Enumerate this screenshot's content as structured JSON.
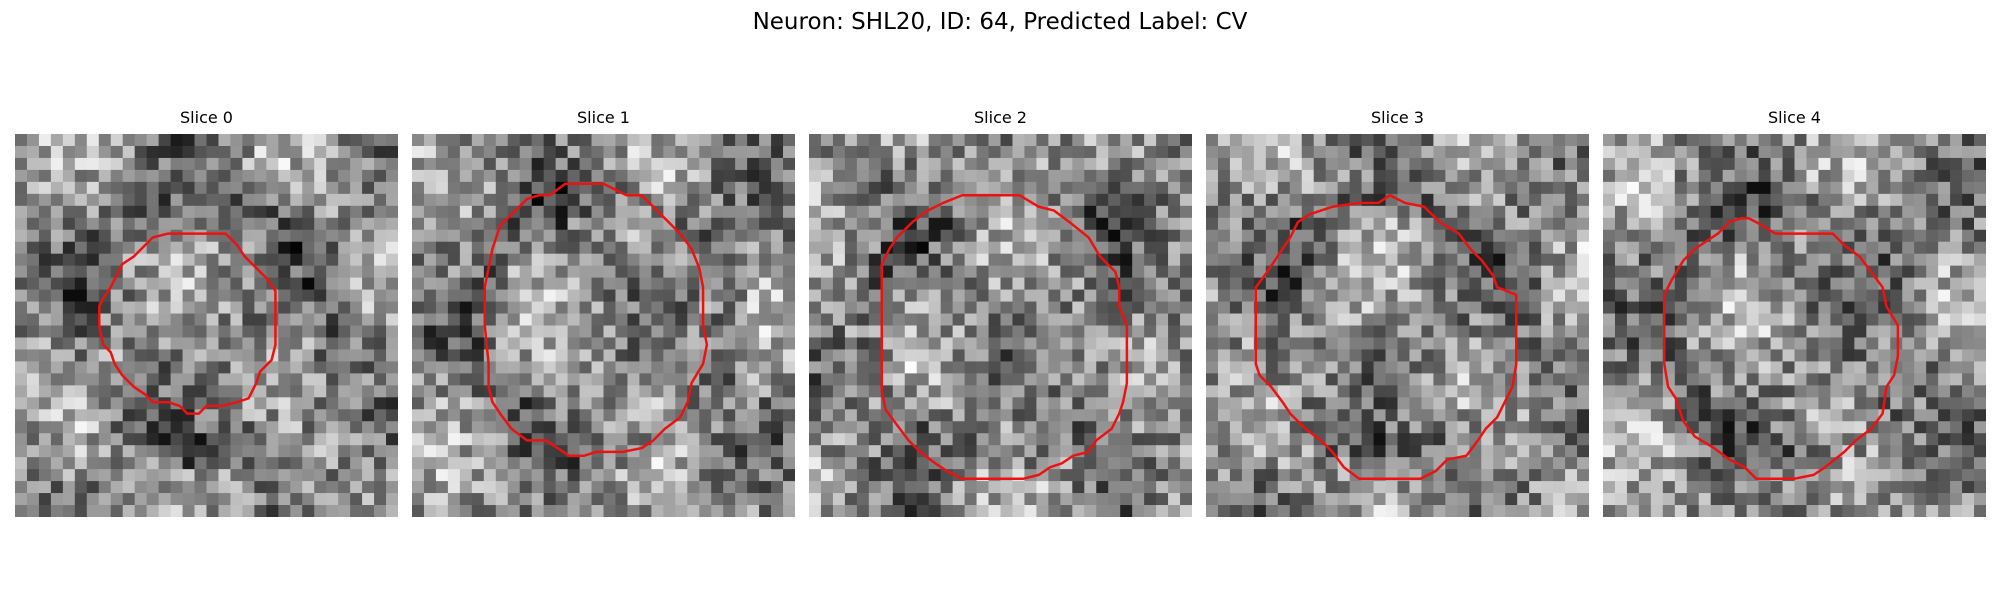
{
  "figure": {
    "title": "Neuron: SHL20, ID: 64, Predicted Label: CV",
    "contour_color": "#ee1111",
    "colormap": "gray"
  },
  "panels": [
    {
      "title": "Slice 0",
      "img_seed": 101,
      "contour": [
        [
          0.5,
          0.26
        ],
        [
          0.51,
          0.26
        ],
        [
          0.55,
          0.26
        ],
        [
          0.58,
          0.29
        ],
        [
          0.6,
          0.32
        ],
        [
          0.63,
          0.35
        ],
        [
          0.66,
          0.38
        ],
        [
          0.68,
          0.41
        ],
        [
          0.68,
          0.45
        ],
        [
          0.68,
          0.5
        ],
        [
          0.68,
          0.55
        ],
        [
          0.67,
          0.59
        ],
        [
          0.64,
          0.62
        ],
        [
          0.63,
          0.65
        ],
        [
          0.61,
          0.69
        ],
        [
          0.58,
          0.7
        ],
        [
          0.54,
          0.71
        ],
        [
          0.5,
          0.71
        ],
        [
          0.48,
          0.73
        ],
        [
          0.45,
          0.73
        ],
        [
          0.43,
          0.71
        ],
        [
          0.4,
          0.7
        ],
        [
          0.36,
          0.7
        ],
        [
          0.34,
          0.68
        ],
        [
          0.31,
          0.66
        ],
        [
          0.28,
          0.63
        ],
        [
          0.26,
          0.6
        ],
        [
          0.25,
          0.57
        ],
        [
          0.23,
          0.55
        ],
        [
          0.22,
          0.5
        ],
        [
          0.22,
          0.45
        ],
        [
          0.23,
          0.43
        ],
        [
          0.25,
          0.4
        ],
        [
          0.26,
          0.38
        ],
        [
          0.28,
          0.34
        ],
        [
          0.31,
          0.32
        ],
        [
          0.33,
          0.3
        ],
        [
          0.36,
          0.27
        ],
        [
          0.4,
          0.26
        ],
        [
          0.45,
          0.26
        ]
      ]
    },
    {
      "title": "Slice 1",
      "img_seed": 202,
      "contour": [
        [
          0.4,
          0.13
        ],
        [
          0.45,
          0.13
        ],
        [
          0.5,
          0.13
        ],
        [
          0.56,
          0.16
        ],
        [
          0.6,
          0.16
        ],
        [
          0.64,
          0.2
        ],
        [
          0.67,
          0.23
        ],
        [
          0.7,
          0.26
        ],
        [
          0.73,
          0.3
        ],
        [
          0.75,
          0.35
        ],
        [
          0.76,
          0.4
        ],
        [
          0.76,
          0.5
        ],
        [
          0.77,
          0.55
        ],
        [
          0.76,
          0.6
        ],
        [
          0.73,
          0.65
        ],
        [
          0.72,
          0.7
        ],
        [
          0.7,
          0.74
        ],
        [
          0.66,
          0.77
        ],
        [
          0.63,
          0.8
        ],
        [
          0.6,
          0.82
        ],
        [
          0.55,
          0.83
        ],
        [
          0.52,
          0.83
        ],
        [
          0.48,
          0.83
        ],
        [
          0.45,
          0.84
        ],
        [
          0.41,
          0.84
        ],
        [
          0.38,
          0.82
        ],
        [
          0.35,
          0.8
        ],
        [
          0.3,
          0.8
        ],
        [
          0.26,
          0.77
        ],
        [
          0.23,
          0.73
        ],
        [
          0.21,
          0.7
        ],
        [
          0.2,
          0.66
        ],
        [
          0.2,
          0.6
        ],
        [
          0.19,
          0.5
        ],
        [
          0.19,
          0.4
        ],
        [
          0.2,
          0.35
        ],
        [
          0.21,
          0.3
        ],
        [
          0.23,
          0.24
        ],
        [
          0.26,
          0.21
        ],
        [
          0.3,
          0.17
        ],
        [
          0.33,
          0.16
        ],
        [
          0.36,
          0.16
        ]
      ]
    },
    {
      "title": "Slice 2",
      "img_seed": 303,
      "contour": [
        [
          0.4,
          0.16
        ],
        [
          0.45,
          0.16
        ],
        [
          0.55,
          0.16
        ],
        [
          0.6,
          0.19
        ],
        [
          0.64,
          0.2
        ],
        [
          0.68,
          0.23
        ],
        [
          0.73,
          0.27
        ],
        [
          0.76,
          0.32
        ],
        [
          0.8,
          0.36
        ],
        [
          0.81,
          0.4
        ],
        [
          0.81,
          0.45
        ],
        [
          0.83,
          0.5
        ],
        [
          0.83,
          0.6
        ],
        [
          0.83,
          0.65
        ],
        [
          0.82,
          0.7
        ],
        [
          0.81,
          0.73
        ],
        [
          0.79,
          0.77
        ],
        [
          0.75,
          0.8
        ],
        [
          0.73,
          0.83
        ],
        [
          0.69,
          0.84
        ],
        [
          0.66,
          0.86
        ],
        [
          0.63,
          0.87
        ],
        [
          0.6,
          0.89
        ],
        [
          0.56,
          0.9
        ],
        [
          0.5,
          0.9
        ],
        [
          0.45,
          0.9
        ],
        [
          0.4,
          0.9
        ],
        [
          0.36,
          0.88
        ],
        [
          0.33,
          0.86
        ],
        [
          0.29,
          0.83
        ],
        [
          0.26,
          0.8
        ],
        [
          0.23,
          0.76
        ],
        [
          0.2,
          0.72
        ],
        [
          0.19,
          0.67
        ],
        [
          0.19,
          0.6
        ],
        [
          0.19,
          0.5
        ],
        [
          0.19,
          0.4
        ],
        [
          0.19,
          0.34
        ],
        [
          0.21,
          0.3
        ],
        [
          0.23,
          0.27
        ],
        [
          0.27,
          0.23
        ],
        [
          0.31,
          0.2
        ],
        [
          0.35,
          0.18
        ]
      ]
    },
    {
      "title": "Slice 3",
      "img_seed": 404,
      "contour": [
        [
          0.4,
          0.18
        ],
        [
          0.45,
          0.18
        ],
        [
          0.48,
          0.16
        ],
        [
          0.52,
          0.18
        ],
        [
          0.57,
          0.19
        ],
        [
          0.61,
          0.23
        ],
        [
          0.66,
          0.26
        ],
        [
          0.69,
          0.3
        ],
        [
          0.72,
          0.33
        ],
        [
          0.75,
          0.37
        ],
        [
          0.76,
          0.4
        ],
        [
          0.81,
          0.42
        ],
        [
          0.81,
          0.5
        ],
        [
          0.81,
          0.6
        ],
        [
          0.8,
          0.66
        ],
        [
          0.78,
          0.7
        ],
        [
          0.76,
          0.74
        ],
        [
          0.73,
          0.77
        ],
        [
          0.71,
          0.8
        ],
        [
          0.68,
          0.84
        ],
        [
          0.63,
          0.85
        ],
        [
          0.6,
          0.88
        ],
        [
          0.56,
          0.9
        ],
        [
          0.5,
          0.9
        ],
        [
          0.4,
          0.9
        ],
        [
          0.36,
          0.87
        ],
        [
          0.33,
          0.83
        ],
        [
          0.3,
          0.8
        ],
        [
          0.26,
          0.77
        ],
        [
          0.22,
          0.73
        ],
        [
          0.2,
          0.7
        ],
        [
          0.17,
          0.66
        ],
        [
          0.14,
          0.63
        ],
        [
          0.13,
          0.6
        ],
        [
          0.13,
          0.5
        ],
        [
          0.13,
          0.4
        ],
        [
          0.16,
          0.36
        ],
        [
          0.18,
          0.33
        ],
        [
          0.2,
          0.3
        ],
        [
          0.22,
          0.27
        ],
        [
          0.24,
          0.23
        ],
        [
          0.27,
          0.21
        ],
        [
          0.3,
          0.2
        ],
        [
          0.33,
          0.19
        ]
      ]
    },
    {
      "title": "Slice 4",
      "img_seed": 505,
      "contour": [
        [
          0.38,
          0.22
        ],
        [
          0.4,
          0.23
        ],
        [
          0.45,
          0.26
        ],
        [
          0.5,
          0.26
        ],
        [
          0.55,
          0.26
        ],
        [
          0.6,
          0.26
        ],
        [
          0.63,
          0.29
        ],
        [
          0.67,
          0.32
        ],
        [
          0.7,
          0.36
        ],
        [
          0.73,
          0.4
        ],
        [
          0.74,
          0.45
        ],
        [
          0.77,
          0.5
        ],
        [
          0.77,
          0.58
        ],
        [
          0.76,
          0.63
        ],
        [
          0.74,
          0.66
        ],
        [
          0.73,
          0.73
        ],
        [
          0.7,
          0.77
        ],
        [
          0.66,
          0.8
        ],
        [
          0.63,
          0.83
        ],
        [
          0.58,
          0.87
        ],
        [
          0.55,
          0.89
        ],
        [
          0.5,
          0.9
        ],
        [
          0.4,
          0.9
        ],
        [
          0.37,
          0.87
        ],
        [
          0.33,
          0.85
        ],
        [
          0.29,
          0.82
        ],
        [
          0.24,
          0.79
        ],
        [
          0.21,
          0.75
        ],
        [
          0.19,
          0.69
        ],
        [
          0.17,
          0.66
        ],
        [
          0.16,
          0.6
        ],
        [
          0.16,
          0.5
        ],
        [
          0.16,
          0.45
        ],
        [
          0.16,
          0.42
        ],
        [
          0.18,
          0.38
        ],
        [
          0.21,
          0.33
        ],
        [
          0.24,
          0.3
        ],
        [
          0.27,
          0.28
        ],
        [
          0.3,
          0.26
        ],
        [
          0.33,
          0.23
        ],
        [
          0.36,
          0.22
        ]
      ]
    }
  ]
}
